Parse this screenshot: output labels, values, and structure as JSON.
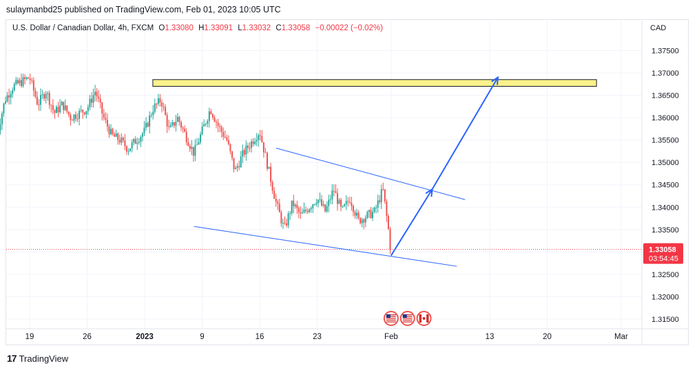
{
  "header": {
    "published": "sulaymanbd25 published on TradingView.com, Feb 01, 2023 10:05 UTC",
    "symbol": "U.S. Dollar / Canadian Dollar, 4h, FXCM",
    "o_label": "O",
    "o_value": "1.33080",
    "h_label": "H",
    "h_value": "1.33091",
    "l_label": "L",
    "l_value": "1.33032",
    "c_label": "C",
    "c_value": "1.33058",
    "change": "−0.00022 (−0.02%)"
  },
  "footer": {
    "brand": "TradingView",
    "logo": "17"
  },
  "colors": {
    "up": "#26a69a",
    "down": "#ef5350",
    "line": "#2962ff",
    "zone_fill": "#fcf28c",
    "price_tag": "#f23645"
  },
  "chart_data": {
    "type": "candlestick",
    "currency": "CAD",
    "ylim": [
      1.313,
      1.381
    ],
    "y_ticks": [
      "1.37500",
      "1.37000",
      "1.36500",
      "1.36000",
      "1.35500",
      "1.35000",
      "1.34500",
      "1.34000",
      "1.33500",
      "1.33000",
      "1.32500",
      "1.32000",
      "1.31500"
    ],
    "y_tick_values": [
      1.375,
      1.37,
      1.365,
      1.36,
      1.355,
      1.35,
      1.345,
      1.34,
      1.335,
      1.33,
      1.325,
      1.32,
      1.315
    ],
    "x_ticks": [
      "19",
      "26",
      "2023",
      "9",
      "16",
      "23",
      "Feb",
      "13",
      "20",
      "Mar"
    ],
    "x_tick_dates": [
      "2022-12-19",
      "2022-12-26",
      "2023-01-02",
      "2023-01-09",
      "2023-01-16",
      "2023-01-23",
      "2023-02-01",
      "2023-02-13",
      "2023-02-20",
      "2023-03-01"
    ],
    "last_price": "1.33058",
    "last_price_value": 1.33058,
    "countdown": "03:54:45",
    "price_path": [
      {
        "date": "2022-12-15",
        "price": 1.356
      },
      {
        "date": "2022-12-16",
        "price": 1.364
      },
      {
        "date": "2022-12-17",
        "price": 1.367
      },
      {
        "date": "2022-12-19",
        "price": 1.369
      },
      {
        "date": "2022-12-20",
        "price": 1.363
      },
      {
        "date": "2022-12-21",
        "price": 1.366
      },
      {
        "date": "2022-12-22",
        "price": 1.361
      },
      {
        "date": "2022-12-23",
        "price": 1.363
      },
      {
        "date": "2022-12-24",
        "price": 1.36
      },
      {
        "date": "2022-12-26",
        "price": 1.362
      },
      {
        "date": "2022-12-27",
        "price": 1.366
      },
      {
        "date": "2022-12-28",
        "price": 1.36
      },
      {
        "date": "2022-12-29",
        "price": 1.356
      },
      {
        "date": "2022-12-30",
        "price": 1.355
      },
      {
        "date": "2022-12-31",
        "price": 1.353
      },
      {
        "date": "2023-01-02",
        "price": 1.357
      },
      {
        "date": "2023-01-03",
        "price": 1.362
      },
      {
        "date": "2023-01-04",
        "price": 1.364
      },
      {
        "date": "2023-01-05",
        "price": 1.357
      },
      {
        "date": "2023-01-06",
        "price": 1.36
      },
      {
        "date": "2023-01-07",
        "price": 1.356
      },
      {
        "date": "2023-01-08",
        "price": 1.352
      },
      {
        "date": "2023-01-09",
        "price": 1.357
      },
      {
        "date": "2023-01-10",
        "price": 1.362
      },
      {
        "date": "2023-01-11",
        "price": 1.358
      },
      {
        "date": "2023-01-12",
        "price": 1.355
      },
      {
        "date": "2023-01-13",
        "price": 1.348
      },
      {
        "date": "2023-01-14",
        "price": 1.352
      },
      {
        "date": "2023-01-16",
        "price": 1.357
      },
      {
        "date": "2023-01-17",
        "price": 1.349
      },
      {
        "date": "2023-01-18",
        "price": 1.341
      },
      {
        "date": "2023-01-19",
        "price": 1.335
      },
      {
        "date": "2023-01-20",
        "price": 1.341
      },
      {
        "date": "2023-01-21",
        "price": 1.338
      },
      {
        "date": "2023-01-23",
        "price": 1.342
      },
      {
        "date": "2023-01-24",
        "price": 1.339
      },
      {
        "date": "2023-01-25",
        "price": 1.344
      },
      {
        "date": "2023-01-26",
        "price": 1.339
      },
      {
        "date": "2023-01-27",
        "price": 1.342
      },
      {
        "date": "2023-01-28",
        "price": 1.337
      },
      {
        "date": "2023-01-30",
        "price": 1.339
      },
      {
        "date": "2023-01-31",
        "price": 1.344
      },
      {
        "date": "2023-02-01",
        "price": 1.33058
      }
    ],
    "drawings": {
      "resistance_zone": {
        "x0": "2023-01-03",
        "x1": "2023-02-26",
        "y0": 1.367,
        "y1": 1.3685
      },
      "channel_upper": {
        "x0": "2023-01-18",
        "y0": 1.3532,
        "x1": "2023-02-10",
        "y1": 1.3417
      },
      "channel_lower": {
        "x0": "2023-01-08",
        "y0": 1.3357,
        "x1": "2023-02-09",
        "y1": 1.3268
      },
      "arrow_1": {
        "x0": "2023-02-01",
        "y0": 1.3292,
        "x1": "2023-02-06",
        "y1": 1.344
      },
      "arrow_2": {
        "x0": "2023-02-06",
        "y0": 1.344,
        "x1": "2023-02-14",
        "y1": 1.369
      }
    },
    "event_markers": [
      {
        "date": "2023-02-01",
        "icon": "us-flag"
      },
      {
        "date": "2023-02-03",
        "icon": "us-flag"
      },
      {
        "date": "2023-02-05",
        "icon": "ca-flag"
      }
    ]
  }
}
